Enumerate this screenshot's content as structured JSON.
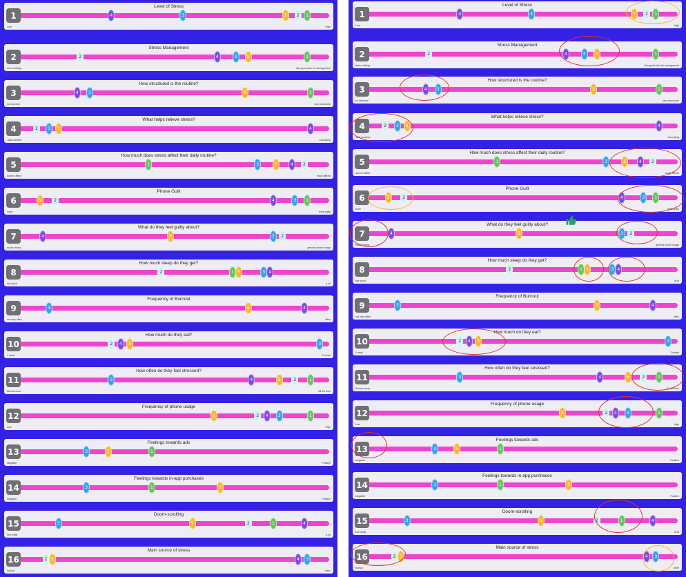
{
  "rows": [
    {
      "n": "1",
      "title": "Level of Stress",
      "low": "Low",
      "high": "High",
      "dots": [
        {
          "v": "4",
          "p": 0.3
        },
        {
          "v": "3",
          "p": 0.53
        },
        {
          "v": "5",
          "p": 0.86
        },
        {
          "v": "2",
          "p": 0.9
        },
        {
          "v": "1",
          "p": 0.93
        }
      ]
    },
    {
      "n": "2",
      "title": "Stress Management",
      "low": "does nothing",
      "high": "Has good plan for management",
      "dots": [
        {
          "v": "2",
          "p": 0.2
        },
        {
          "v": "4",
          "p": 0.64
        },
        {
          "v": "3",
          "p": 0.7
        },
        {
          "v": "5",
          "p": 0.74
        },
        {
          "v": "1",
          "p": 0.93
        }
      ]
    },
    {
      "n": "3",
      "title": "How structured is the routine?",
      "low": "no structure",
      "high": "very structured",
      "dots": [
        {
          "v": "4",
          "p": 0.19
        },
        {
          "v": "3",
          "p": 0.23
        },
        {
          "v": "5",
          "p": 0.73
        },
        {
          "v": "1",
          "p": 0.94
        }
      ]
    },
    {
      "n": "4",
      "title": "What helps relieve stress?",
      "low": "Task oriented",
      "high": "Journaling",
      "dots": [
        {
          "v": "2",
          "p": 0.06
        },
        {
          "v": "3",
          "p": 0.1
        },
        {
          "v": "5",
          "p": 0.13
        },
        {
          "v": "4",
          "p": 0.94
        }
      ]
    },
    {
      "n": "5",
      "title": "How much does stress affect their daily routine?",
      "low": "doesn't affect",
      "high": "really affects",
      "dots": [
        {
          "v": "1",
          "p": 0.42
        },
        {
          "v": "3",
          "p": 0.77
        },
        {
          "v": "5",
          "p": 0.83
        },
        {
          "v": "4",
          "p": 0.88
        },
        {
          "v": "2",
          "p": 0.92
        }
      ]
    },
    {
      "n": "6",
      "title": "Phone Guilt",
      "low": "none",
      "high": "feels guilty",
      "dots": [
        {
          "v": "5",
          "p": 0.07
        },
        {
          "v": "2",
          "p": 0.12
        },
        {
          "v": "4",
          "p": 0.82
        },
        {
          "v": "3",
          "p": 0.89
        },
        {
          "v": "1",
          "p": 0.93
        }
      ]
    },
    {
      "n": "7",
      "title": "What do they feel guilty about?",
      "low": "social media",
      "high": "general phone usage",
      "dots": [
        {
          "v": "4",
          "p": 0.08
        },
        {
          "v": "5",
          "p": 0.49
        },
        {
          "v": "3",
          "p": 0.82
        },
        {
          "v": "2",
          "p": 0.85
        }
      ]
    },
    {
      "n": "8",
      "title": "How much sleep do they get?",
      "low": "not much",
      "high": "a lot",
      "dots": [
        {
          "v": "2",
          "p": 0.46
        },
        {
          "v": "1",
          "p": 0.69
        },
        {
          "v": "5",
          "p": 0.71
        },
        {
          "v": "3",
          "p": 0.79
        },
        {
          "v": "4",
          "p": 0.81
        }
      ]
    },
    {
      "n": "9",
      "title": "Frequency of Burnout",
      "low": "not very often",
      "high": "often",
      "dots": [
        {
          "v": "3",
          "p": 0.1
        },
        {
          "v": "5",
          "p": 0.74
        },
        {
          "v": "4",
          "p": 0.92
        }
      ]
    },
    {
      "n": "10",
      "title": "How much do they eat?",
      "low": "1 meal",
      "high": "3 meals",
      "dots": [
        {
          "v": "2",
          "p": 0.3
        },
        {
          "v": "4",
          "p": 0.33
        },
        {
          "v": "5",
          "p": 0.36
        },
        {
          "v": "3",
          "p": 0.97
        }
      ]
    },
    {
      "n": "11",
      "title": "How often do they feel stressed?",
      "low": "Almost never",
      "high": "All the time",
      "dots": [
        {
          "v": "3",
          "p": 0.3
        },
        {
          "v": "4",
          "p": 0.75
        },
        {
          "v": "5",
          "p": 0.84
        },
        {
          "v": "2",
          "p": 0.89
        },
        {
          "v": "1",
          "p": 0.94
        }
      ]
    },
    {
      "n": "12",
      "title": "Frequency of phone usage",
      "low": "Low",
      "high": "High",
      "dots": [
        {
          "v": "5",
          "p": 0.63
        },
        {
          "v": "2",
          "p": 0.77
        },
        {
          "v": "4",
          "p": 0.8
        },
        {
          "v": "3",
          "p": 0.84
        },
        {
          "v": "1",
          "p": 0.94
        }
      ]
    },
    {
      "n": "13",
      "title": "Feelings towards ads",
      "low": "Negative",
      "high": "Positive",
      "dots": [
        {
          "v": "3",
          "p": 0.22
        },
        {
          "v": "5",
          "p": 0.29
        },
        {
          "v": "1",
          "p": 0.43
        }
      ]
    },
    {
      "n": "14",
      "title": "Feelings towards in-app purchases",
      "low": "Negative",
      "high": "Positive",
      "dots": [
        {
          "v": "3",
          "p": 0.22
        },
        {
          "v": "1",
          "p": 0.43
        },
        {
          "v": "5",
          "p": 0.65
        }
      ]
    },
    {
      "n": "15",
      "title": "Doom-scrolling",
      "low": "Not really",
      "high": "A lot",
      "dots": [
        {
          "v": "3",
          "p": 0.13
        },
        {
          "v": "5",
          "p": 0.56
        },
        {
          "v": "2",
          "p": 0.74
        },
        {
          "v": "1",
          "p": 0.82
        },
        {
          "v": "4",
          "p": 0.92
        }
      ]
    },
    {
      "n": "16",
      "title": "Main source of stress",
      "low": "School",
      "high": "other",
      "dots": [
        {
          "v": "2",
          "p": 0.09
        },
        {
          "v": "5",
          "p": 0.11
        },
        {
          "v": "4",
          "p": 0.9
        },
        {
          "v": "3",
          "p": 0.93
        }
      ]
    }
  ],
  "colors": {
    "panel": "#3322e6",
    "track": "#f044cf",
    "d1": "#5ec85a",
    "d2": "#c8f4ef",
    "d3": "#2fa5f0",
    "d4": "#7a4bea",
    "d5": "#f7b928",
    "annot_red": "#e0312a",
    "annot_orange": "#f7b928",
    "thumb": "#27a35a"
  },
  "icons": {
    "thumb": "thumbs-up-icon"
  }
}
